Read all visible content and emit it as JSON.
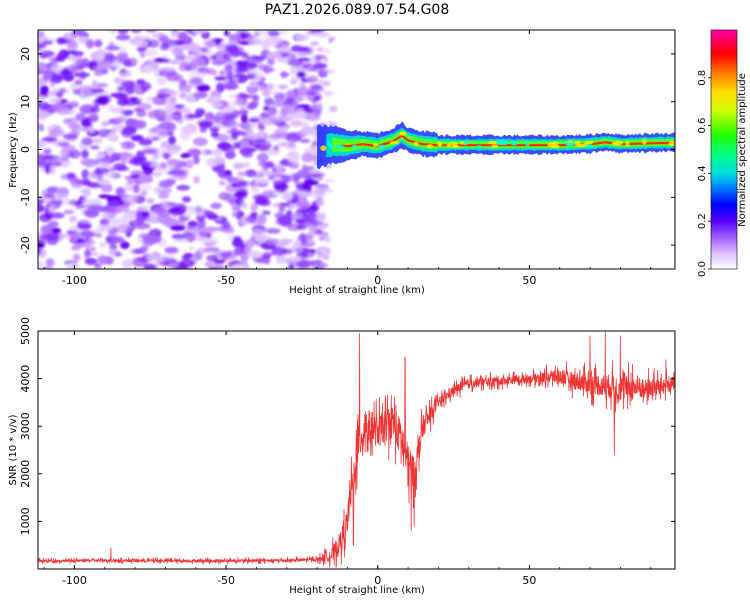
{
  "figure": {
    "title": "PAZ1.2026.089.07.54.G08"
  },
  "chart_data": [
    {
      "type": "heatmap",
      "name": "spectrogram",
      "xlabel": "Height of straight line (km)",
      "ylabel": "Frequency (Hz)",
      "xlim": [
        -112,
        98
      ],
      "ylim": [
        -25,
        25
      ],
      "xticks": [
        -100,
        -50,
        0,
        50
      ],
      "yticks": [
        -20,
        -10,
        0,
        10,
        20
      ],
      "xtick_labels": [
        "-100",
        "-50",
        "0",
        "50"
      ],
      "ytick_labels": [
        "-20",
        "-10",
        "0",
        "10",
        "20"
      ],
      "noise_region_x": [
        -112,
        -20
      ],
      "signal_region_x": [
        -20,
        98
      ],
      "signal_centerline": [
        [
          -20,
          0.5
        ],
        [
          -15,
          1.0
        ],
        [
          -10,
          0.8
        ],
        [
          -5,
          1.2
        ],
        [
          0,
          0.8
        ],
        [
          5,
          1.8
        ],
        [
          8,
          3.0
        ],
        [
          10,
          2.0
        ],
        [
          15,
          1.2
        ],
        [
          20,
          1.0
        ],
        [
          40,
          1.0
        ],
        [
          60,
          1.0
        ],
        [
          70,
          1.2
        ],
        [
          75,
          1.6
        ],
        [
          80,
          1.2
        ],
        [
          90,
          1.4
        ],
        [
          98,
          1.5
        ]
      ],
      "colorbar": {
        "label": "Normalized spectral amplitude",
        "range": [
          0,
          1
        ],
        "ticks": [
          0.0,
          0.2,
          0.4,
          0.6,
          0.8
        ],
        "tick_labels": [
          "0.0",
          "0.2",
          "0.4",
          "0.6",
          "0.8"
        ]
      }
    },
    {
      "type": "line",
      "name": "snr",
      "xlabel": "Height of straight line (km)",
      "ylabel": "SNR (10 * v/v)",
      "xlim": [
        -112,
        98
      ],
      "ylim": [
        0,
        5000
      ],
      "xticks": [
        -100,
        -50,
        0,
        50
      ],
      "yticks": [
        1000,
        2000,
        3000,
        4000,
        5000
      ],
      "xtick_labels": [
        "-100",
        "-50",
        "0",
        "50"
      ],
      "ytick_labels": [
        "1000",
        "2000",
        "3000",
        "4000",
        "5000"
      ],
      "series": [
        {
          "name": "SNR",
          "color": "#ee3333",
          "envelope": [
            [
              -112,
              170
            ],
            [
              -90,
              180
            ],
            [
              -60,
              170
            ],
            [
              -30,
              180
            ],
            [
              -20,
              200
            ],
            [
              -15,
              300
            ],
            [
              -12,
              600
            ],
            [
              -10,
              1000
            ],
            [
              -8,
              2000
            ],
            [
              -6,
              2700
            ],
            [
              -4,
              3000
            ],
            [
              0,
              2900
            ],
            [
              5,
              3100
            ],
            [
              8,
              2700
            ],
            [
              10,
              2200
            ],
            [
              12,
              2000
            ],
            [
              15,
              3000
            ],
            [
              20,
              3500
            ],
            [
              25,
              3750
            ],
            [
              30,
              3900
            ],
            [
              40,
              3950
            ],
            [
              50,
              4000
            ],
            [
              60,
              4050
            ],
            [
              65,
              3950
            ],
            [
              70,
              3900
            ],
            [
              80,
              3800
            ],
            [
              90,
              3800
            ],
            [
              98,
              3900
            ]
          ],
          "noise_amplitude": [
            [
              -112,
              60
            ],
            [
              -20,
              70
            ],
            [
              -12,
              500
            ],
            [
              -6,
              900
            ],
            [
              0,
              700
            ],
            [
              10,
              900
            ],
            [
              15,
              500
            ],
            [
              20,
              220
            ],
            [
              50,
              180
            ],
            [
              65,
              400
            ],
            [
              80,
              600
            ],
            [
              90,
              450
            ],
            [
              98,
              300
            ]
          ],
          "spikes": [
            [
              -88,
              450
            ],
            [
              -6,
              4950
            ],
            [
              -8,
              500
            ],
            [
              9,
              4450
            ],
            [
              11,
              800
            ],
            [
              12,
              900
            ],
            [
              70,
              4900
            ],
            [
              75,
              5000
            ],
            [
              78,
              2400
            ],
            [
              80,
              4900
            ],
            [
              84,
              4300
            ],
            [
              88,
              3800
            ],
            [
              95,
              4400
            ]
          ]
        }
      ]
    }
  ]
}
